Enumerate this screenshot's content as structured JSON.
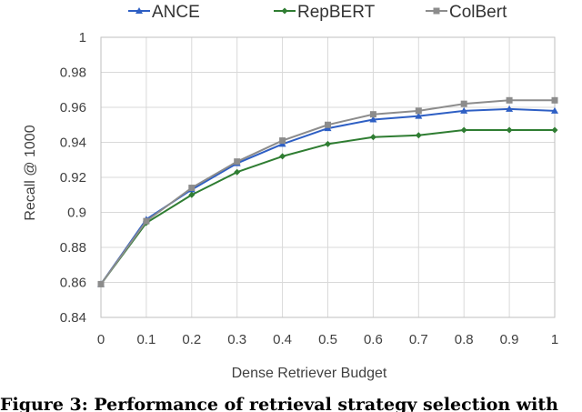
{
  "chart_data": {
    "type": "line",
    "xlabel": "Dense Retriever Budget",
    "ylabel": "Recall @ 1000",
    "x": [
      0,
      0.1,
      0.2,
      0.3,
      0.4,
      0.5,
      0.6,
      0.7,
      0.8,
      0.9,
      1
    ],
    "x_tick_labels": [
      "0",
      "0.1",
      "0.2",
      "0.3",
      "0.4",
      "0.5",
      "0.6",
      "0.7",
      "0.8",
      "0.9",
      "1"
    ],
    "ylim": [
      0.84,
      1
    ],
    "y_ticks": [
      0.84,
      0.86,
      0.88,
      0.9,
      0.92,
      0.94,
      0.96,
      0.98,
      1
    ],
    "y_tick_labels": [
      "0.84",
      "0.86",
      "0.88",
      "0.9",
      "0.92",
      "0.94",
      "0.96",
      "0.98",
      "1"
    ],
    "grid": "horizontal",
    "legend_position": "top",
    "series": [
      {
        "name": "ANCE",
        "color": "#2e5fc4",
        "marker": "triangle",
        "values": [
          0.859,
          0.896,
          0.913,
          0.928,
          0.939,
          0.948,
          0.953,
          0.955,
          0.958,
          0.959,
          0.958
        ]
      },
      {
        "name": "RepBERT",
        "color": "#2f7d32",
        "marker": "diamond",
        "values": [
          0.859,
          0.894,
          0.91,
          0.923,
          0.932,
          0.939,
          0.943,
          0.944,
          0.947,
          0.947,
          0.947
        ]
      },
      {
        "name": "ColBert",
        "color": "#8c8c8c",
        "marker": "square",
        "values": [
          0.859,
          0.895,
          0.914,
          0.929,
          0.941,
          0.95,
          0.956,
          0.958,
          0.962,
          0.964,
          0.964
        ]
      }
    ]
  },
  "caption": "Figure 3: Performance of retrieval strategy selection with"
}
